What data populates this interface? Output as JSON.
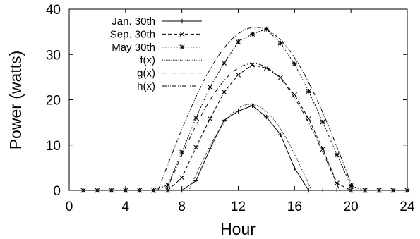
{
  "chart_data": {
    "type": "line",
    "title": "",
    "xlabel": "Hour",
    "ylabel": "Power (watts)",
    "xlim": [
      0,
      24
    ],
    "ylim": [
      0,
      40
    ],
    "xticks": [
      0,
      4,
      8,
      12,
      16,
      20,
      24
    ],
    "yticks": [
      0,
      10,
      20,
      30,
      40
    ],
    "grid": false,
    "legend_position": "top-left",
    "series": [
      {
        "name": "Jan. 30th",
        "style": "solid",
        "marker": "plus",
        "x": [
          1,
          2,
          3,
          4,
          5,
          6,
          7,
          8,
          9,
          10,
          11,
          12,
          13,
          14,
          15,
          16,
          17,
          18,
          19,
          20,
          21,
          22,
          23,
          24
        ],
        "y": [
          0,
          0,
          0,
          0,
          0,
          0,
          0,
          0,
          2.1,
          9.2,
          15.5,
          17.5,
          18.7,
          16.2,
          12.3,
          4.9,
          0,
          0,
          0,
          0,
          0,
          0,
          0,
          0
        ]
      },
      {
        "name": "Sep. 30th",
        "style": "dashed",
        "marker": "x",
        "x": [
          1,
          2,
          3,
          4,
          5,
          6,
          7,
          8,
          9,
          10,
          11,
          12,
          13,
          14,
          15,
          16,
          17,
          18,
          19,
          20,
          21,
          22,
          23,
          24
        ],
        "y": [
          0,
          0,
          0,
          0,
          0,
          0,
          0,
          2.8,
          9.5,
          15.8,
          21.7,
          25.5,
          27.7,
          27.0,
          24.9,
          21.1,
          15.8,
          9.1,
          1.6,
          0,
          0,
          0,
          0,
          0
        ]
      },
      {
        "name": "May 30th",
        "style": "dotted",
        "marker": "star",
        "x": [
          1,
          2,
          3,
          4,
          5,
          6,
          7,
          8,
          9,
          10,
          11,
          12,
          13,
          14,
          15,
          16,
          17,
          18,
          19,
          20,
          21,
          22,
          23,
          24
        ],
        "y": [
          0,
          0,
          0,
          0,
          0,
          0,
          1.2,
          8.4,
          16.0,
          22.8,
          28.1,
          32.8,
          34.5,
          35.6,
          32.5,
          27.9,
          21.9,
          15.1,
          7.9,
          1.0,
          0,
          0,
          0,
          0
        ]
      },
      {
        "name": "f(x)",
        "style": "fine-dotted",
        "marker": "none",
        "x_range": [
          8.5,
          17.2
        ],
        "peak_x": 12.85,
        "peak_y": 19.0
      },
      {
        "name": "g(x)",
        "style": "dash-dot",
        "marker": "none",
        "x_range": [
          6.9,
          19.2
        ],
        "peak_x": 13.05,
        "peak_y": 28.0
      },
      {
        "name": "h(x)",
        "style": "dash-dot-dot",
        "marker": "none",
        "x_range": [
          6.3,
          20.2
        ],
        "peak_x": 13.25,
        "peak_y": 36.0
      }
    ]
  }
}
